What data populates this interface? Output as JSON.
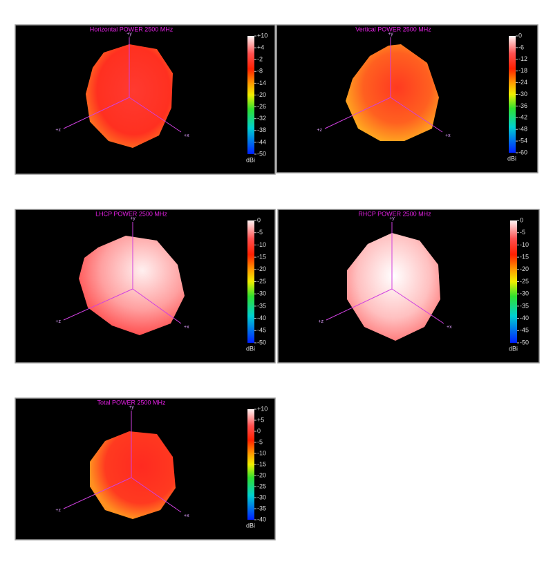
{
  "chart_data": [
    {
      "type": "radiation-pattern",
      "title": "Horizontal POWER 2500  MHz",
      "colorbar_label": "dBi",
      "clim": [
        -50,
        10
      ],
      "cticks": [
        {
          "value": 10,
          "label": "+10"
        },
        {
          "value": 4,
          "label": "+4"
        },
        -2,
        -8,
        -14,
        -20,
        -26,
        -32,
        -38,
        -44,
        -50
      ],
      "axis_labels": [
        "+y",
        "+z",
        "+x"
      ]
    },
    {
      "type": "radiation-pattern",
      "title": "Vertical POWER 2500  MHz",
      "colorbar_label": "dBi",
      "clim": [
        -60,
        0
      ],
      "cticks": [
        0,
        -6,
        -12,
        -18,
        -24,
        -30,
        -36,
        -42,
        -48,
        -54,
        -60
      ],
      "axis_labels": [
        "+y",
        "+z",
        "+x"
      ]
    },
    {
      "type": "radiation-pattern",
      "title": "LHCP POWER 2500  MHz",
      "colorbar_label": "dBi",
      "clim": [
        -50,
        0
      ],
      "cticks": [
        0,
        -5,
        -10,
        -15,
        -20,
        -25,
        -30,
        -35,
        -40,
        -45,
        -50
      ],
      "axis_labels": [
        "+y",
        "+z",
        "+x"
      ]
    },
    {
      "type": "radiation-pattern",
      "title": "RHCP POWER 2500  MHz",
      "colorbar_label": "dBi",
      "clim": [
        -50,
        0
      ],
      "cticks": [
        0,
        -5,
        -10,
        -15,
        -20,
        -25,
        -30,
        -35,
        -40,
        -45,
        -50
      ],
      "axis_labels": [
        "+y",
        "+z",
        "+x"
      ]
    },
    {
      "type": "radiation-pattern",
      "title": "Total POWER 2500  MHz",
      "colorbar_label": "dBi",
      "clim": [
        -40,
        10
      ],
      "cticks": [
        {
          "value": 10,
          "label": "+10"
        },
        {
          "value": 5,
          "label": "+5"
        },
        0,
        -5,
        -10,
        -15,
        -20,
        -25,
        -30,
        -35,
        -40
      ],
      "axis_labels": [
        "+y",
        "+z",
        "+x"
      ]
    }
  ]
}
